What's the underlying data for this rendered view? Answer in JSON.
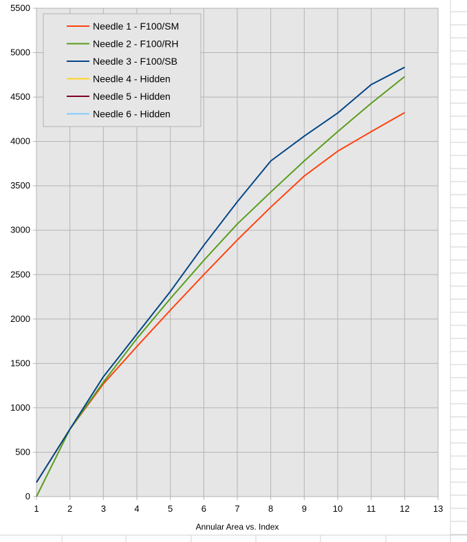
{
  "chart_data": {
    "type": "line",
    "title": "",
    "xlabel": "Annular Area vs. Index",
    "ylabel": "",
    "xlim": [
      1,
      13
    ],
    "ylim": [
      0,
      5500
    ],
    "xticks": [
      1,
      2,
      3,
      4,
      5,
      6,
      7,
      8,
      9,
      10,
      11,
      12,
      13
    ],
    "yticks": [
      0,
      500,
      1000,
      1500,
      2000,
      2500,
      3000,
      3500,
      4000,
      4500,
      5000,
      5500
    ],
    "grid": true,
    "legend_position": "top-left",
    "series": [
      {
        "name": "Needle 1 - F100/SM",
        "color": "#ff420e",
        "x": [
          1,
          2,
          3,
          4,
          5,
          6,
          7,
          8,
          9,
          10,
          11,
          12
        ],
        "y": [
          160,
          760,
          1270,
          1690,
          2100,
          2500,
          2890,
          3260,
          3610,
          3890,
          4110,
          4325
        ]
      },
      {
        "name": "Needle 2 - F100/RH",
        "color": "#579d1c",
        "x": [
          1,
          2,
          3,
          4,
          5,
          6,
          7,
          8,
          9,
          10,
          11,
          12
        ],
        "y": [
          0,
          760,
          1290,
          1780,
          2230,
          2660,
          3070,
          3430,
          3780,
          4110,
          4430,
          4730
        ]
      },
      {
        "name": "Needle 3 - F100/SB",
        "color": "#004586",
        "x": [
          1,
          2,
          3,
          4,
          5,
          6,
          7,
          8,
          9,
          10,
          11,
          12
        ],
        "y": [
          160,
          760,
          1350,
          1830,
          2310,
          2830,
          3320,
          3780,
          4060,
          4320,
          4640,
          4835
        ]
      },
      {
        "name": "Needle 4 - Hidden",
        "color": "#ffd320",
        "x": [],
        "y": []
      },
      {
        "name": "Needle 5 - Hidden",
        "color": "#7e0021",
        "x": [],
        "y": []
      },
      {
        "name": "Needle 6 - Hidden",
        "color": "#83caff",
        "x": [],
        "y": []
      }
    ]
  },
  "style": {
    "plot_background": "#e6e6e6",
    "grid_color": "#b3b3b3",
    "axis_color": "#b3b3b3",
    "legend_background": "#e6e6e6"
  }
}
